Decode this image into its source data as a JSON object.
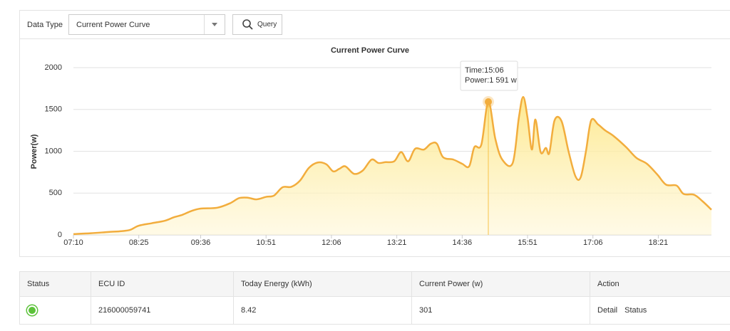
{
  "toolbar": {
    "label": "Data Type",
    "select": "Current Power Curve",
    "button": "Query"
  },
  "chart_data": {
    "type": "area",
    "title": "Current Power Curve",
    "y_label": "Power(w)",
    "x": [
      "07:10",
      "07:30",
      "07:50",
      "08:05",
      "08:15",
      "08:25",
      "08:40",
      "08:55",
      "09:05",
      "09:15",
      "09:25",
      "09:36",
      "09:55",
      "10:10",
      "10:20",
      "10:30",
      "10:40",
      "10:51",
      "11:00",
      "11:10",
      "11:20",
      "11:30",
      "11:40",
      "11:50",
      "12:00",
      "12:08",
      "12:15",
      "12:22",
      "12:32",
      "12:42",
      "12:52",
      "13:00",
      "13:08",
      "13:18",
      "13:26",
      "13:34",
      "13:42",
      "13:52",
      "14:00",
      "14:07",
      "14:14",
      "14:26",
      "14:36",
      "14:44",
      "14:50",
      "14:58",
      "15:06",
      "15:14",
      "15:22",
      "15:34",
      "15:41",
      "15:46",
      "15:51",
      "15:56",
      "16:00",
      "16:06",
      "16:12",
      "16:16",
      "16:22",
      "16:30",
      "16:38",
      "16:46",
      "16:52",
      "16:58",
      "17:04",
      "17:12",
      "17:20",
      "17:30",
      "17:44",
      "17:56",
      "18:08",
      "18:20",
      "18:30",
      "18:42",
      "18:50",
      "19:02",
      "19:12",
      "19:22"
    ],
    "values": [
      10,
      20,
      35,
      45,
      60,
      110,
      140,
      170,
      210,
      240,
      285,
      315,
      325,
      380,
      440,
      445,
      425,
      455,
      470,
      570,
      575,
      650,
      800,
      865,
      845,
      760,
      790,
      820,
      730,
      770,
      900,
      860,
      870,
      880,
      990,
      880,
      1030,
      1020,
      1090,
      1090,
      930,
      900,
      850,
      820,
      1050,
      1080,
      1591,
      1150,
      900,
      860,
      1400,
      1650,
      1400,
      1020,
      1380,
      990,
      1040,
      980,
      1370,
      1360,
      1000,
      700,
      690,
      1000,
      1370,
      1320,
      1250,
      1180,
      1050,
      920,
      850,
      720,
      600,
      590,
      490,
      480,
      400,
      301
    ],
    "color": "#f2ad3d",
    "xlim": [
      "07:10",
      "19:22"
    ],
    "xticks": [
      "07:10",
      "08:25",
      "09:36",
      "10:51",
      "12:06",
      "13:21",
      "14:36",
      "15:51",
      "17:06",
      "18:21"
    ],
    "ylim": [
      0,
      2000
    ],
    "yticks": [
      0,
      500,
      1000,
      1500,
      2000
    ],
    "grid": true,
    "tooltip": {
      "index": 46,
      "lines": [
        "Time:15:06",
        "Power:1 591 w"
      ]
    }
  },
  "table": {
    "columns": [
      "Status",
      "ECU ID",
      "Today Energy (kWh)",
      "Current Power (w)",
      "Action"
    ],
    "rows": [
      {
        "ecu_id": "216000059741",
        "today_energy": "8.42",
        "current_power": "301",
        "actions": [
          "Detail",
          "Status"
        ]
      }
    ]
  }
}
